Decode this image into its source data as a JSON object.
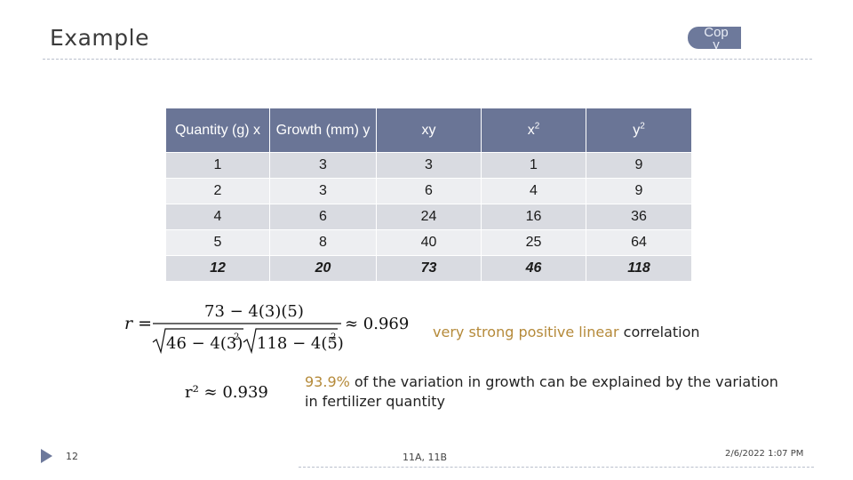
{
  "slide": {
    "title": "Example",
    "copy_label": "Copy",
    "page_number": "12",
    "footer_center": "11A, 11B",
    "footer_date": "2/6/2022 1:07 PM"
  },
  "table": {
    "headers": [
      "Quantity (g) x",
      "Growth (mm) y",
      "xy",
      "x2",
      "y2"
    ],
    "rows": [
      [
        "1",
        "3",
        "3",
        "1",
        "9"
      ],
      [
        "2",
        "3",
        "6",
        "4",
        "9"
      ],
      [
        "4",
        "6",
        "24",
        "16",
        "36"
      ],
      [
        "5",
        "8",
        "40",
        "25",
        "64"
      ]
    ],
    "totals": [
      "12",
      "20",
      "73",
      "46",
      "118"
    ]
  },
  "formulas": {
    "r_lhs": "r =",
    "r_numerator": "73 − 4(3)(5)",
    "r_denom_a": "46 − 4(3)",
    "r_denom_b": "118 − 4(5)",
    "r_result": "≈ 0.969",
    "r2_result": "r² ≈ 0.939"
  },
  "interpretation": {
    "strength": "very strong positive linear",
    "strength_suffix": "correlation",
    "percent": "93.9%",
    "explained": "of the variation in growth can be explained by the variation in fertilizer quantity"
  }
}
